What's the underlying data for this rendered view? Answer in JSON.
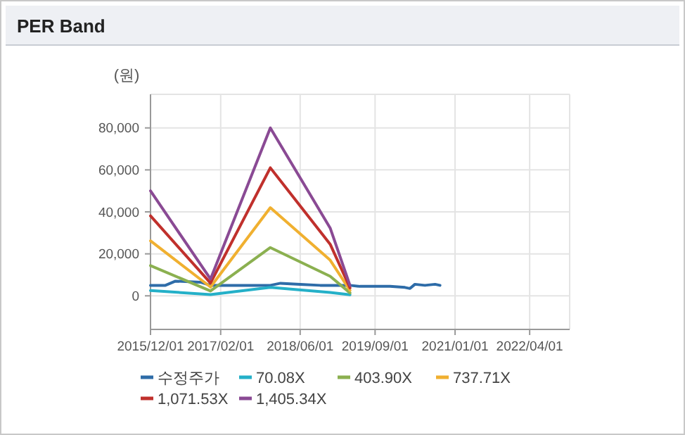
{
  "chart_data": {
    "type": "line",
    "title": "PER Band",
    "ylabel": "(원)",
    "xlim": [
      "2015-12-01",
      "2022-12-01"
    ],
    "ylim": [
      -16000,
      96000
    ],
    "xticks": [
      {
        "value": "2015-12-01",
        "label": "2015/12/01"
      },
      {
        "value": "2017-02-01",
        "label": "2017/02/01"
      },
      {
        "value": "2018-06-01",
        "label": "2018/06/01"
      },
      {
        "value": "2019-09-01",
        "label": "2019/09/01"
      },
      {
        "value": "2021-01-01",
        "label": "2021/01/01"
      },
      {
        "value": "2022-04-01",
        "label": "2022/04/01"
      }
    ],
    "yticks": [
      {
        "value": 0,
        "label": "0"
      },
      {
        "value": 20000,
        "label": "20,000"
      },
      {
        "value": 40000,
        "label": "40,000"
      },
      {
        "value": 60000,
        "label": "60,000"
      },
      {
        "value": 80000,
        "label": "80,000"
      }
    ],
    "grid": true,
    "legend": "bottom",
    "marker": "none",
    "line_style": "solid",
    "series": [
      {
        "name": "수정주가",
        "color": "#2e6ca8",
        "x": [
          "2015-12-01",
          "2016-03-01",
          "2016-05-01",
          "2016-10-01",
          "2016-12-01",
          "2017-06-01",
          "2017-12-01",
          "2018-02-01",
          "2018-06-01",
          "2018-10-01",
          "2019-04-01",
          "2019-06-01",
          "2019-12-01",
          "2020-03-01",
          "2020-04-01",
          "2020-05-01",
          "2020-07-01",
          "2020-09-01",
          "2020-10-01"
        ],
        "values": [
          5000,
          5000,
          7000,
          6500,
          5000,
          5000,
          5000,
          6000,
          5500,
          5000,
          5000,
          4500,
          4500,
          4000,
          3500,
          5500,
          5000,
          5500,
          5000
        ]
      },
      {
        "name": "70.08X",
        "color": "#24b0c8",
        "x": [
          "2015-12-01",
          "2016-12-01",
          "2017-12-01",
          "2018-12-01",
          "2019-04-01"
        ],
        "values": [
          2500,
          600,
          4000,
          1600,
          500
        ]
      },
      {
        "name": "403.90X",
        "color": "#8bb050",
        "x": [
          "2015-12-01",
          "2016-12-01",
          "2017-12-01",
          "2018-12-01",
          "2019-04-01"
        ],
        "values": [
          14400,
          2300,
          23000,
          9300,
          1400
        ]
      },
      {
        "name": "737.71X",
        "color": "#f0b030",
        "x": [
          "2015-12-01",
          "2016-12-01",
          "2017-12-01",
          "2018-12-01",
          "2019-04-01"
        ],
        "values": [
          26200,
          4200,
          42000,
          17000,
          2600
        ]
      },
      {
        "name": "1,071.53X",
        "color": "#c0302c",
        "x": [
          "2015-12-01",
          "2016-12-01",
          "2017-12-01",
          "2018-12-01",
          "2019-04-01"
        ],
        "values": [
          38100,
          6100,
          61000,
          24600,
          3800
        ]
      },
      {
        "name": "1,405.34X",
        "color": "#8a4a94",
        "x": [
          "2015-12-01",
          "2016-12-01",
          "2017-12-01",
          "2018-12-01",
          "2019-04-01"
        ],
        "values": [
          50000,
          8000,
          80000,
          32300,
          4900
        ]
      }
    ]
  }
}
